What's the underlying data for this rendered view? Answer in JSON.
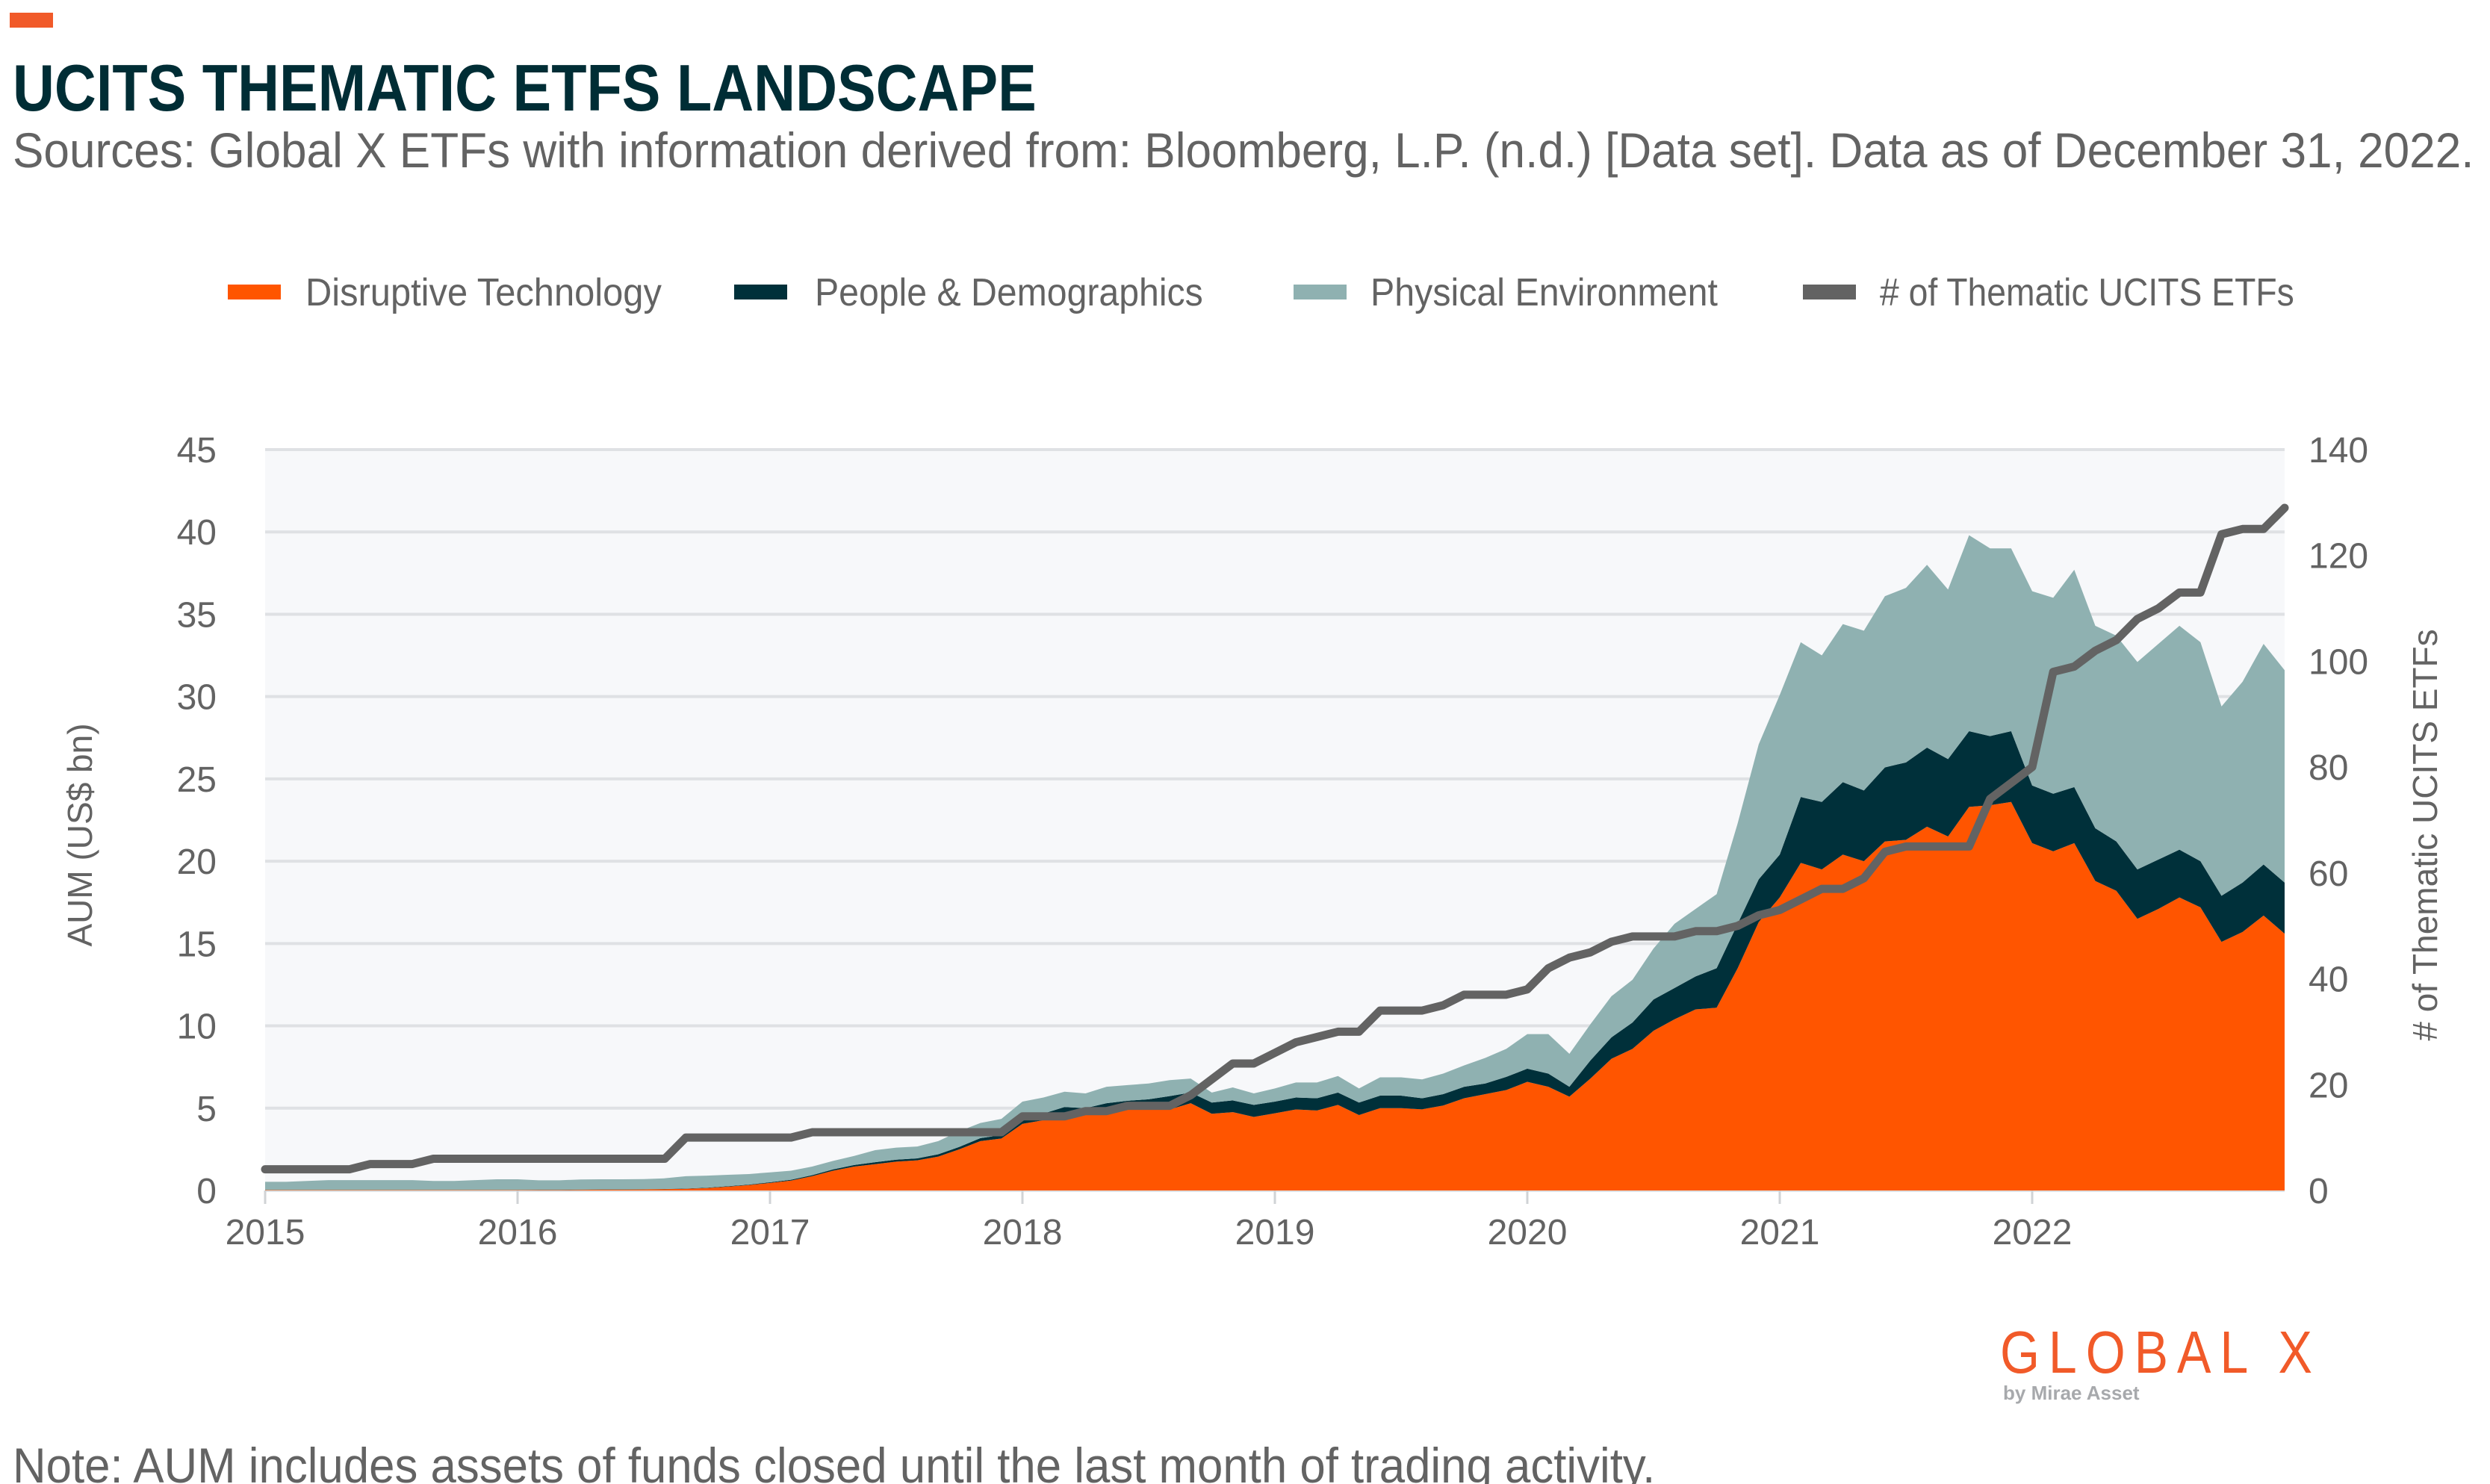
{
  "header": {
    "title": "UCITS THEMATIC ETFS LANDSCAPE",
    "subtitle": "Sources: Global X ETFs with information derived from: Bloomberg, L.P. (n.d.) [Data set]. Data as of December 31, 2022."
  },
  "footer": {
    "note": "Note: AUM includes assets of funds closed until the last month of trading activity.",
    "logo_text": "GLOBAL X",
    "logo_subtext": "by Mirae Asset"
  },
  "colors": {
    "accent": "#F15A29",
    "title": "#002D35",
    "disruptive_technology": "#FF5500",
    "people_demographics": "#00303A",
    "physical_environment": "#8FB1B1",
    "etf_count_line": "#636363",
    "plot_background": "#F7F8FA",
    "grid": "#DFE1E4"
  },
  "chart_data": {
    "type": "area",
    "stacked": true,
    "title": "UCITS THEMATIC ETFS LANDSCAPE",
    "ylabel": "AUM (US$ bn)",
    "y2label": "# of Thematic UCITS ETFs",
    "ylim": [
      0,
      45
    ],
    "y2lim": [
      0,
      140
    ],
    "yticks": [
      "0",
      "5",
      "10",
      "15",
      "20",
      "25",
      "30",
      "35",
      "40",
      "45"
    ],
    "y2ticks": [
      "0",
      "20",
      "40",
      "60",
      "80",
      "100",
      "120",
      "140"
    ],
    "xticks": [
      "2015",
      "2016",
      "2017",
      "2018",
      "2019",
      "2020",
      "2021",
      "2022"
    ],
    "grid": true,
    "legend_position": "top",
    "x": [
      "2014-12",
      "2015-01",
      "2015-02",
      "2015-03",
      "2015-04",
      "2015-05",
      "2015-06",
      "2015-07",
      "2015-08",
      "2015-09",
      "2015-10",
      "2015-11",
      "2015-12",
      "2016-01",
      "2016-02",
      "2016-03",
      "2016-04",
      "2016-05",
      "2016-06",
      "2016-07",
      "2016-08",
      "2016-09",
      "2016-10",
      "2016-11",
      "2016-12",
      "2017-01",
      "2017-02",
      "2017-03",
      "2017-04",
      "2017-05",
      "2017-06",
      "2017-07",
      "2017-08",
      "2017-09",
      "2017-10",
      "2017-11",
      "2017-12",
      "2018-01",
      "2018-02",
      "2018-03",
      "2018-04",
      "2018-05",
      "2018-06",
      "2018-07",
      "2018-08",
      "2018-09",
      "2018-10",
      "2018-11",
      "2018-12",
      "2019-01",
      "2019-02",
      "2019-03",
      "2019-04",
      "2019-05",
      "2019-06",
      "2019-07",
      "2019-08",
      "2019-09",
      "2019-10",
      "2019-11",
      "2019-12",
      "2020-01",
      "2020-02",
      "2020-03",
      "2020-04",
      "2020-05",
      "2020-06",
      "2020-07",
      "2020-08",
      "2020-09",
      "2020-10",
      "2020-11",
      "2020-12",
      "2021-01",
      "2021-02",
      "2021-03",
      "2021-04",
      "2021-05",
      "2021-06",
      "2021-07",
      "2021-08",
      "2021-09",
      "2021-10",
      "2021-11",
      "2021-12",
      "2022-01",
      "2022-02",
      "2022-03",
      "2022-04",
      "2022-05",
      "2022-06",
      "2022-07",
      "2022-08",
      "2022-09",
      "2022-10",
      "2022-11",
      "2022-12"
    ],
    "series": [
      {
        "name": "Disruptive Technology",
        "kind": "area",
        "axis": "left",
        "color": "#FF5500",
        "values": [
          0.02,
          0.02,
          0.02,
          0.02,
          0.02,
          0.02,
          0.02,
          0.02,
          0.02,
          0.02,
          0.02,
          0.02,
          0.02,
          0.03,
          0.03,
          0.04,
          0.05,
          0.05,
          0.06,
          0.08,
          0.1,
          0.15,
          0.23,
          0.33,
          0.46,
          0.6,
          0.87,
          1.2,
          1.45,
          1.6,
          1.75,
          1.83,
          2.06,
          2.5,
          3.0,
          3.16,
          4.05,
          4.27,
          4.27,
          4.58,
          4.63,
          4.9,
          4.92,
          4.92,
          5.3,
          4.66,
          4.76,
          4.47,
          4.69,
          4.92,
          4.86,
          5.2,
          4.58,
          5.0,
          5.0,
          4.93,
          5.16,
          5.6,
          5.85,
          6.1,
          6.6,
          6.3,
          5.7,
          6.8,
          8.0,
          8.6,
          9.7,
          10.4,
          11.0,
          11.1,
          13.5,
          16.3,
          17.8,
          19.9,
          19.5,
          20.4,
          20.0,
          21.2,
          21.3,
          22.1,
          21.5,
          23.3,
          23.4,
          23.6,
          21.1,
          20.6,
          21.1,
          18.8,
          18.2,
          16.5,
          17.1,
          17.8,
          17.2,
          15.1,
          15.7,
          16.7,
          15.6
        ]
      },
      {
        "name": "People & Demographics",
        "kind": "area",
        "axis": "left",
        "color": "#00303A",
        "values": [
          0.01,
          0.01,
          0.01,
          0.01,
          0.01,
          0.01,
          0.01,
          0.01,
          0.01,
          0.01,
          0.01,
          0.01,
          0.01,
          0.01,
          0.01,
          0.01,
          0.01,
          0.01,
          0.01,
          0.01,
          0.02,
          0.02,
          0.03,
          0.03,
          0.04,
          0.05,
          0.06,
          0.08,
          0.1,
          0.12,
          0.12,
          0.12,
          0.14,
          0.15,
          0.18,
          0.2,
          0.2,
          0.4,
          0.8,
          0.42,
          0.67,
          0.55,
          0.62,
          0.81,
          0.65,
          0.68,
          0.71,
          0.73,
          0.71,
          0.73,
          0.74,
          0.75,
          0.76,
          0.76,
          0.76,
          0.67,
          0.69,
          0.7,
          0.65,
          0.8,
          0.8,
          0.8,
          0.6,
          1.1,
          1.3,
          1.6,
          1.9,
          1.9,
          2.0,
          2.4,
          2.7,
          2.6,
          2.6,
          4.0,
          4.1,
          4.4,
          4.3,
          4.5,
          4.7,
          4.8,
          4.7,
          4.6,
          4.2,
          4.3,
          3.5,
          3.5,
          3.4,
          3.2,
          3.0,
          3.0,
          3.0,
          2.9,
          2.8,
          2.8,
          3.0,
          3.1,
          3.1
        ]
      },
      {
        "name": "Physical Environment",
        "kind": "area",
        "axis": "left",
        "color": "#8FB1B1",
        "values": [
          0.5,
          0.5,
          0.55,
          0.6,
          0.6,
          0.6,
          0.6,
          0.6,
          0.55,
          0.55,
          0.6,
          0.65,
          0.65,
          0.58,
          0.58,
          0.62,
          0.62,
          0.62,
          0.62,
          0.65,
          0.75,
          0.73,
          0.69,
          0.64,
          0.6,
          0.55,
          0.52,
          0.52,
          0.55,
          0.73,
          0.73,
          0.72,
          0.8,
          0.95,
          0.92,
          0.99,
          1.15,
          0.98,
          0.93,
          0.9,
          1.0,
          0.95,
          0.96,
          0.97,
          0.85,
          0.61,
          0.79,
          0.7,
          0.8,
          0.91,
          0.96,
          1.0,
          0.86,
          1.11,
          1.11,
          1.15,
          1.25,
          1.3,
          1.55,
          1.7,
          2.1,
          2.4,
          2.0,
          2.2,
          2.5,
          2.6,
          3.1,
          3.9,
          4.1,
          4.5,
          6.1,
          8.2,
          9.7,
          9.4,
          8.9,
          9.6,
          9.7,
          10.4,
          10.6,
          11.1,
          10.3,
          11.9,
          11.4,
          11.1,
          11.8,
          11.9,
          13.2,
          12.3,
          12.5,
          12.6,
          13.1,
          13.6,
          13.3,
          11.5,
          12.2,
          13.4,
          12.9
        ]
      },
      {
        "name": "# of Thematic UCITS ETFs",
        "kind": "line",
        "axis": "right",
        "color": "#636363",
        "values": [
          4,
          4,
          4,
          4,
          4,
          5,
          5,
          5,
          6,
          6,
          6,
          6,
          6,
          6,
          6,
          6,
          6,
          6,
          6,
          6,
          10,
          10,
          10,
          10,
          10,
          10,
          11,
          11,
          11,
          11,
          11,
          11,
          11,
          11,
          11,
          11,
          14,
          14,
          14,
          15,
          15,
          16,
          16,
          16,
          18,
          21,
          24,
          24,
          26,
          28,
          29,
          30,
          30,
          34,
          34,
          34,
          35,
          37,
          37,
          37,
          38,
          42,
          44,
          45,
          47,
          48,
          48,
          48,
          49,
          49,
          50,
          52,
          53,
          55,
          57,
          57,
          59,
          64,
          65,
          65,
          65,
          65,
          74,
          77,
          80,
          98,
          99,
          102,
          104,
          108,
          110,
          113,
          113,
          124,
          125,
          125,
          129
        ]
      }
    ]
  }
}
